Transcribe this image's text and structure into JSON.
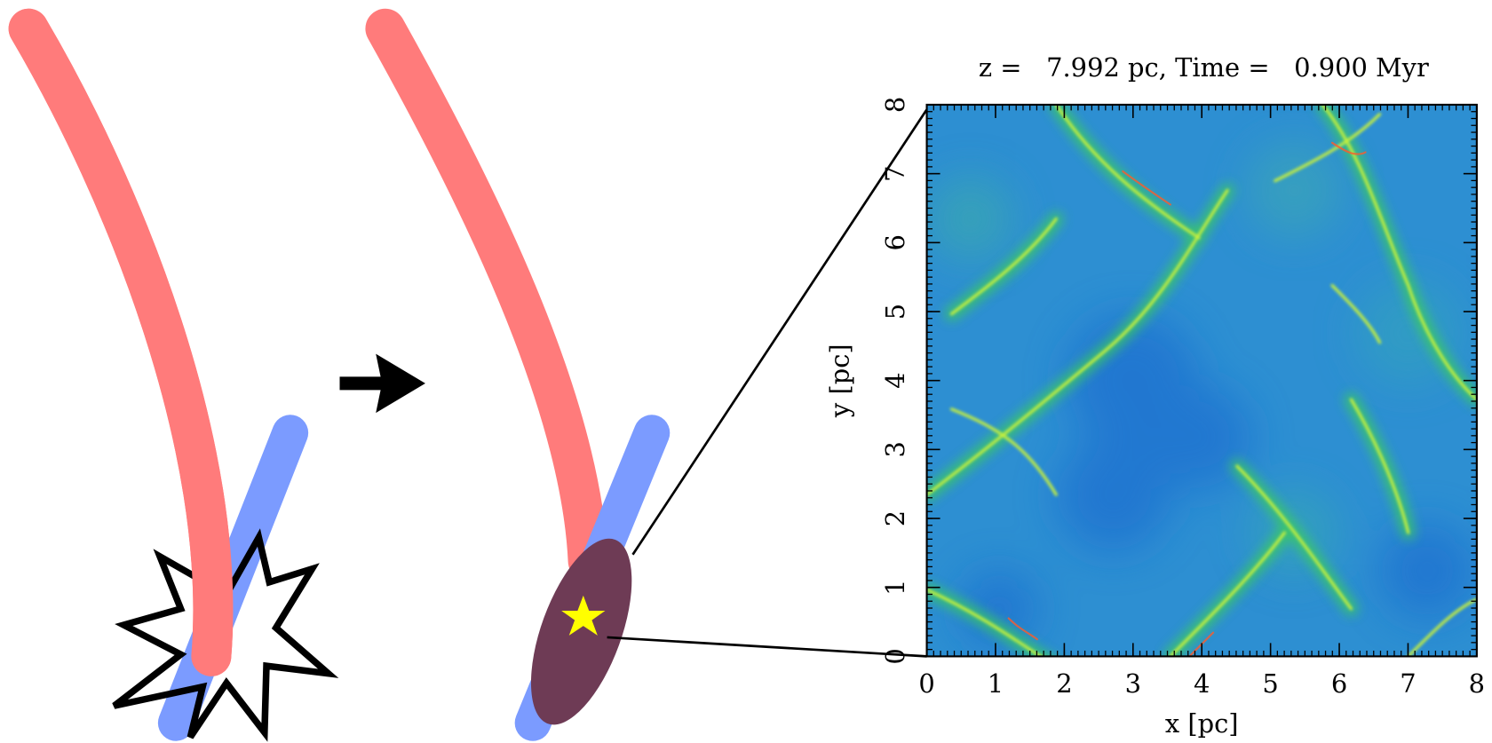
{
  "panel": {
    "title": "z =   7.992 pc, Time =   0.900 Myr",
    "xlabel": "x [pc]",
    "ylabel": "y [pc]",
    "xlim": [
      0,
      8
    ],
    "ylim": [
      0,
      8
    ],
    "xticks": [
      0,
      1,
      2,
      3,
      4,
      5,
      6,
      7,
      8
    ],
    "yticks": [
      0,
      1,
      2,
      3,
      4,
      5,
      6,
      7,
      8
    ]
  }
}
